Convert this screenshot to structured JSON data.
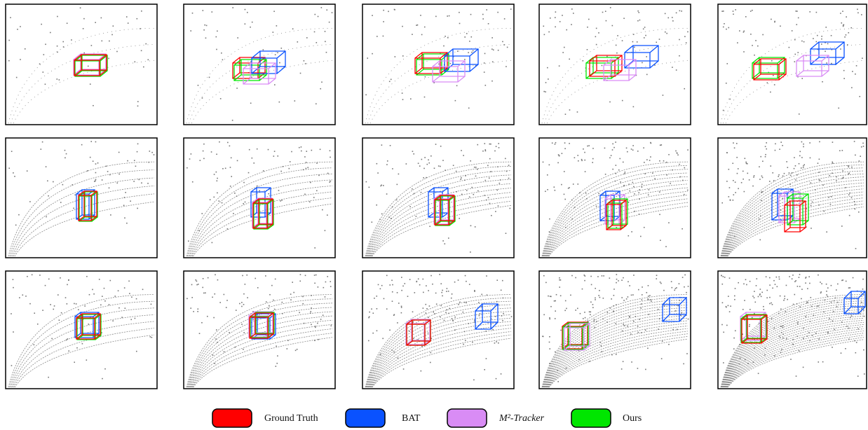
{
  "legend": [
    {
      "label": "Ground Truth",
      "color": "#ff0000"
    },
    {
      "label": "BAT",
      "color": "#0a52ff"
    },
    {
      "label": "M²-Tracker",
      "color": "#d98cf5"
    },
    {
      "label": "Ours",
      "color": "#00e600"
    }
  ]
}
